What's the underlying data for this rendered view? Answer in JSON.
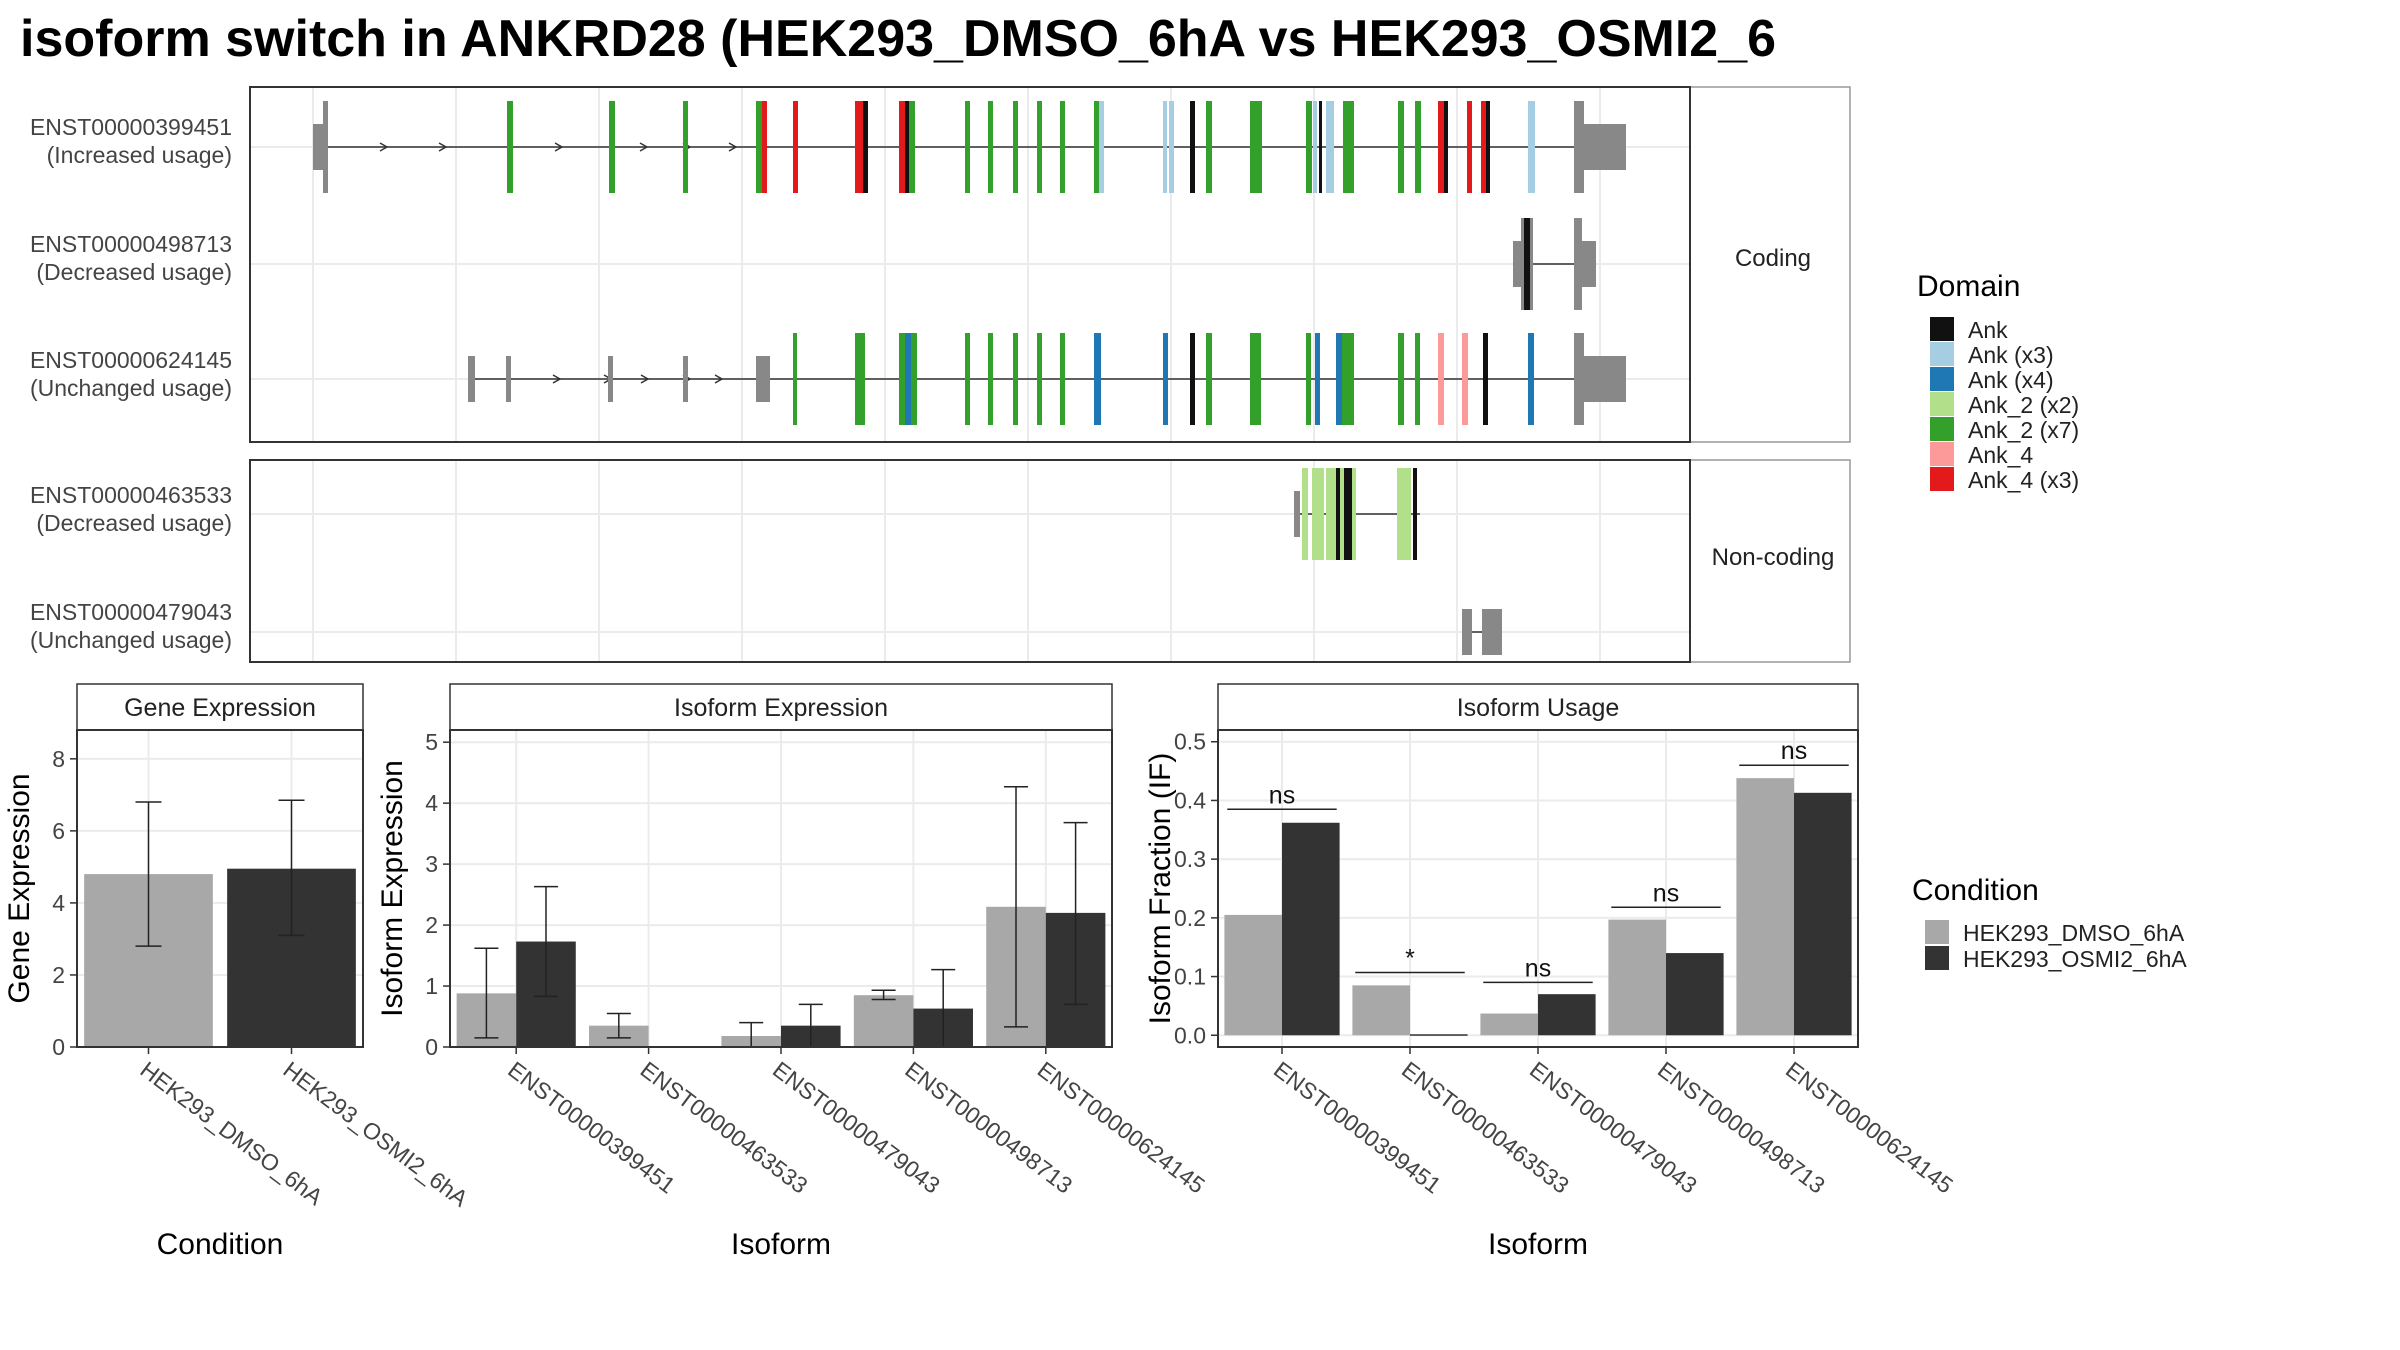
{
  "title": "isoform switch in ANKRD28 (HEK293_DMSO_6hA vs HEK293_OSMI2_6",
  "colors": {
    "exon": "#888888",
    "cond_dmso": "#a8a8a8",
    "cond_osmi": "#333333",
    "Ank": "#111111",
    "Ank (x3)": "#a6cee3",
    "Ank (x4)": "#1f78b4",
    "Ank_2 (x2)": "#b2df8a",
    "Ank_2 (x7)": "#33a02c",
    "Ank_4": "#fb9a99",
    "Ank_4 (x3)": "#e31a1c"
  },
  "transcripts": {
    "coding_label": "Coding",
    "noncoding_label": "Non-coding",
    "coding": [
      {
        "id": "ENST00000399451",
        "usage": "(Increased usage)"
      },
      {
        "id": "ENST00000498713",
        "usage": "(Decreased usage)"
      },
      {
        "id": "ENST00000624145",
        "usage": "(Unchanged usage)"
      }
    ],
    "noncoding": [
      {
        "id": "ENST00000463533",
        "usage": "(Decreased usage)"
      },
      {
        "id": "ENST00000479043",
        "usage": "(Unchanged usage)"
      }
    ]
  },
  "legend_domain": {
    "title": "Domain",
    "items": [
      "Ank",
      "Ank (x3)",
      "Ank (x4)",
      "Ank_2 (x2)",
      "Ank_2 (x7)",
      "Ank_4",
      "Ank_4 (x3)"
    ]
  },
  "legend_condition": {
    "title": "Condition",
    "items": [
      "HEK293_DMSO_6hA",
      "HEK293_OSMI2_6hA"
    ]
  },
  "chart_data": [
    {
      "type": "bar",
      "title": "Gene Expression",
      "xlabel": "Condition",
      "ylabel": "Gene Expression",
      "ylim": [
        0,
        8.8
      ],
      "yticks": [
        0,
        2,
        4,
        6,
        8
      ],
      "categories": [
        "HEK293_DMSO_6hA",
        "HEK293_OSMI2_6hA"
      ],
      "values": [
        4.8,
        4.95
      ],
      "error_low": [
        2.8,
        3.1
      ],
      "error_high": [
        6.8,
        6.85
      ]
    },
    {
      "type": "bar",
      "title": "Isoform Expression",
      "xlabel": "Isoform",
      "ylabel": "Isoform Expression",
      "ylim": [
        0,
        5.2
      ],
      "yticks": [
        0,
        1,
        2,
        3,
        4,
        5
      ],
      "categories": [
        "ENST00000399451",
        "ENST00000463533",
        "ENST00000479043",
        "ENST00000498713",
        "ENST00000624145"
      ],
      "series": [
        {
          "name": "HEK293_DMSO_6hA",
          "values": [
            0.88,
            0.35,
            0.18,
            0.85,
            2.3
          ],
          "error_low": [
            0.15,
            0.15,
            0.0,
            0.78,
            0.33
          ],
          "error_high": [
            1.62,
            0.55,
            0.4,
            0.93,
            4.27
          ]
        },
        {
          "name": "HEK293_OSMI2_6hA",
          "values": [
            1.73,
            0.0,
            0.35,
            0.63,
            2.2
          ],
          "error_low": [
            0.83,
            0.0,
            0.0,
            0.0,
            0.7
          ],
          "error_high": [
            2.63,
            0.0,
            0.7,
            1.27,
            3.68
          ]
        }
      ]
    },
    {
      "type": "bar",
      "title": "Isoform Usage",
      "xlabel": "Isoform",
      "ylabel": "Isoform Fraction (IF)",
      "ylim": [
        -0.02,
        0.52
      ],
      "yticks": [
        0.0,
        0.1,
        0.2,
        0.3,
        0.4,
        0.5
      ],
      "ytick_labels": [
        "0.0",
        "0.1",
        "0.2",
        "0.3",
        "0.4",
        "0.5"
      ],
      "categories": [
        "ENST00000399451",
        "ENST00000463533",
        "ENST00000479043",
        "ENST00000498713",
        "ENST00000624145"
      ],
      "series": [
        {
          "name": "HEK293_DMSO_6hA",
          "values": [
            0.205,
            0.085,
            0.037,
            0.197,
            0.438
          ]
        },
        {
          "name": "HEK293_OSMI2_6hA",
          "values": [
            0.362,
            0.0,
            0.07,
            0.14,
            0.413
          ]
        }
      ],
      "significance": [
        "ns",
        "*",
        "ns",
        "ns",
        "ns"
      ],
      "significance_y": [
        0.385,
        0.107,
        0.09,
        0.218,
        0.46
      ]
    }
  ]
}
